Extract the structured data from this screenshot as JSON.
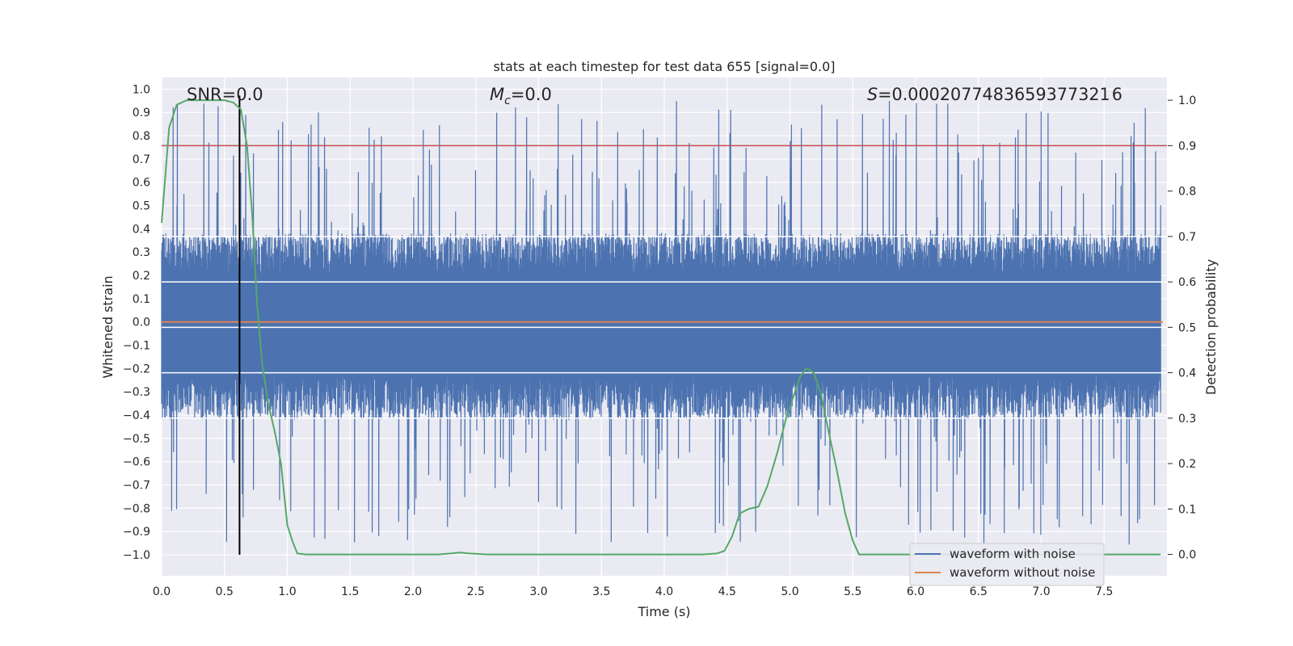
{
  "chart_data": {
    "type": "line",
    "title": "stats at each timestep for test data 655 [signal=0.0]",
    "xlabel": "Time (s)",
    "ylabel": "Whitened strain",
    "y2label": "Detection probability",
    "xlim": [
      0.0,
      8.0
    ],
    "ylim": [
      -1.09,
      1.05
    ],
    "y2lim": [
      -0.047,
      1.05
    ],
    "xticks": [
      0.0,
      0.5,
      1.0,
      1.5,
      2.0,
      2.5,
      3.0,
      3.5,
      4.0,
      4.5,
      5.0,
      5.5,
      6.0,
      6.5,
      7.0,
      7.5
    ],
    "xtick_labels": [
      "0.0",
      "0.5",
      "1.0",
      "1.5",
      "2.0",
      "2.5",
      "3.0",
      "3.5",
      "4.0",
      "4.5",
      "5.0",
      "5.5",
      "6.0",
      "6.5",
      "7.0",
      "7.5"
    ],
    "yticks": [
      1.0,
      0.9,
      0.8,
      0.7,
      0.6,
      0.5,
      0.4,
      0.3,
      0.2,
      0.1,
      0.0,
      -0.1,
      -0.2,
      -0.3,
      -0.4,
      -0.5,
      -0.6,
      -0.7,
      -0.8,
      -0.9,
      -1.0
    ],
    "ytick_labels": [
      "1.0",
      "0.9",
      "0.8",
      "0.7",
      "0.6",
      "0.5",
      "0.4",
      "0.3",
      "0.2",
      "0.1",
      "0.0",
      "−0.1",
      "−0.2",
      "−0.3",
      "−0.4",
      "−0.5",
      "−0.6",
      "−0.7",
      "−0.8",
      "−0.9",
      "−1.0"
    ],
    "y2ticks": [
      1.0,
      0.9,
      0.8,
      0.7,
      0.6,
      0.5,
      0.4,
      0.3,
      0.2,
      0.1,
      0.0
    ],
    "y2tick_labels": [
      "1.0",
      "0.9",
      "0.8",
      "0.7",
      "0.6",
      "0.5",
      "0.4",
      "0.3",
      "0.2",
      "0.1",
      "0.0"
    ],
    "annotations": {
      "snr": "SNR=0.0",
      "mc_symbol": "M",
      "mc_sub": "c",
      "mc_value": "=0.0",
      "s_symbol": "S",
      "s_value": "=0.0002077483659377321 6"
    },
    "series": [
      {
        "name": "waveform with noise",
        "color": "#4c72b0",
        "kind": "noisy_strain",
        "typical_range": [
          -0.42,
          0.38
        ],
        "max": 0.95,
        "min": -0.96
      },
      {
        "name": "waveform without noise",
        "color": "#dd8452",
        "kind": "constant",
        "value": 0.0
      },
      {
        "name": "detection probability",
        "color": "#55a868",
        "axis": "right",
        "x": [
          0.0,
          0.06,
          0.12,
          0.2,
          0.3,
          0.4,
          0.5,
          0.57,
          0.63,
          0.68,
          0.72,
          0.76,
          0.8,
          0.85,
          0.9,
          0.95,
          1.0,
          1.04,
          1.08,
          1.15,
          1.5,
          2.0,
          2.2,
          2.3,
          2.37,
          2.45,
          2.6,
          3.0,
          3.5,
          4.0,
          4.3,
          4.42,
          4.48,
          4.54,
          4.6,
          4.67,
          4.75,
          4.82,
          4.9,
          4.97,
          5.03,
          5.08,
          5.13,
          5.19,
          5.25,
          5.3,
          5.37,
          5.44,
          5.5,
          5.55,
          6.0,
          6.5,
          7.0,
          7.5,
          7.95
        ],
        "values": [
          0.73,
          0.94,
          0.99,
          1.0,
          1.0,
          1.0,
          1.0,
          0.995,
          0.98,
          0.9,
          0.75,
          0.55,
          0.42,
          0.33,
          0.27,
          0.2,
          0.065,
          0.03,
          0.002,
          0.0,
          0.0,
          0.0,
          0.0,
          0.002,
          0.004,
          0.002,
          0.0,
          0.0,
          0.0,
          0.0,
          0.0,
          0.002,
          0.008,
          0.04,
          0.09,
          0.1,
          0.105,
          0.15,
          0.225,
          0.3,
          0.35,
          0.39,
          0.41,
          0.4,
          0.35,
          0.28,
          0.19,
          0.09,
          0.03,
          0.0,
          0.0,
          0.0,
          0.0,
          0.0,
          0.0
        ]
      }
    ],
    "threshold": {
      "value": 0.9,
      "axis": "right",
      "color": "#c44e52"
    },
    "vline": {
      "x": 0.62,
      "ymin": -1.0,
      "ymax": 1.0,
      "color": "#000000"
    },
    "legend_placement": "lower-right",
    "legend": [
      {
        "label": "waveform with noise",
        "color": "#4c72b0"
      },
      {
        "label": "waveform without noise",
        "color": "#dd8452"
      }
    ],
    "style": {
      "background": "#eaeaf2",
      "grid": "#ffffff",
      "text": "#262626"
    }
  }
}
